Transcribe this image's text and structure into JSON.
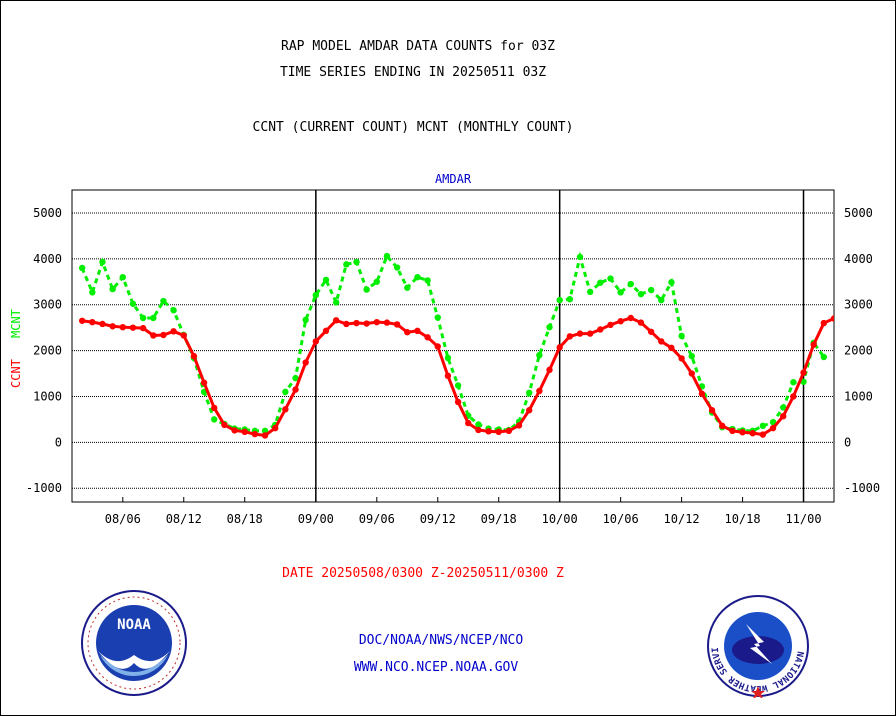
{
  "header": {
    "title_line1": "RAP MODEL AMDAR DATA COUNTS for 03Z",
    "title_line2": "TIME SERIES ENDING IN 20250511 03Z",
    "subtitle": "CCNT (CURRENT COUNT) MCNT (MONTHLY COUNT)"
  },
  "footer": {
    "date_range": "DATE 20250508/0300 Z-20250511/0300 Z",
    "link1": "DOC/NOAA/NWS/NCEP/NCO",
    "link2": "WWW.NCO.NCEP.NOAA.GOV"
  },
  "logos": {
    "left_label": "NOAA",
    "right_ring_text": "NATIONAL WEATHER SERVICE"
  },
  "colors": {
    "ccnt": "#ff0000",
    "mcnt": "#00ee00",
    "text_blue": "#0000cc",
    "grid": "#000000"
  },
  "chart_data": {
    "type": "line",
    "title": "AMDAR",
    "ylabel_ccnt": "CCNT",
    "ylabel_mcnt": "MCNT",
    "ylim": [
      -1300,
      5500
    ],
    "yticks": [
      -1000,
      0,
      1000,
      2000,
      3000,
      4000,
      5000
    ],
    "x_ticks": [
      {
        "label": "08/06",
        "x": 5
      },
      {
        "label": "08/12",
        "x": 11
      },
      {
        "label": "08/18",
        "x": 17
      },
      {
        "label": "09/00",
        "x": 24
      },
      {
        "label": "09/06",
        "x": 30
      },
      {
        "label": "09/12",
        "x": 36
      },
      {
        "label": "09/18",
        "x": 42
      },
      {
        "label": "10/00",
        "x": 48
      },
      {
        "label": "10/06",
        "x": 54
      },
      {
        "label": "10/12",
        "x": 60
      },
      {
        "label": "10/18",
        "x": 66
      },
      {
        "label": "11/00",
        "x": 72
      }
    ],
    "xlim": [
      0,
      75
    ],
    "day_boundaries": [
      24,
      48,
      72
    ],
    "grid": true,
    "series": [
      {
        "name": "CCNT",
        "values": [
          2650,
          2620,
          2580,
          2530,
          2510,
          2500,
          2490,
          2330,
          2340,
          2420,
          2330,
          1880,
          1300,
          750,
          380,
          260,
          230,
          180,
          150,
          310,
          720,
          1150,
          1740,
          2200,
          2430,
          2660,
          2580,
          2600,
          2590,
          2620,
          2610,
          2570,
          2400,
          2430,
          2290,
          2090,
          1450,
          880,
          420,
          270,
          240,
          230,
          250,
          370,
          700,
          1120,
          1580,
          2070,
          2310,
          2370,
          2370,
          2460,
          2560,
          2640,
          2710,
          2610,
          2410,
          2200,
          2060,
          1830,
          1500,
          1060,
          700,
          360,
          250,
          220,
          200,
          170,
          310,
          570,
          1000,
          1520,
          2130,
          2600,
          2700
        ]
      },
      {
        "name": "MCNT",
        "values": [
          3800,
          3270,
          3930,
          3340,
          3600,
          3020,
          2710,
          2710,
          3080,
          2880,
          2340,
          1840,
          1100,
          500,
          400,
          300,
          280,
          250,
          250,
          380,
          1100,
          1400,
          2670,
          3210,
          3540,
          3050,
          3880,
          3930,
          3330,
          3500,
          4060,
          3810,
          3370,
          3600,
          3530,
          2720,
          1840,
          1240,
          580,
          390,
          300,
          280,
          270,
          450,
          1080,
          1900,
          2510,
          3100,
          3120,
          4040,
          3280,
          3480,
          3570,
          3270,
          3450,
          3230,
          3320,
          3100,
          3490,
          2320,
          1880,
          1220,
          650,
          330,
          290,
          260,
          250,
          360,
          440,
          760,
          1310,
          1320,
          2170,
          1860
        ]
      }
    ]
  }
}
